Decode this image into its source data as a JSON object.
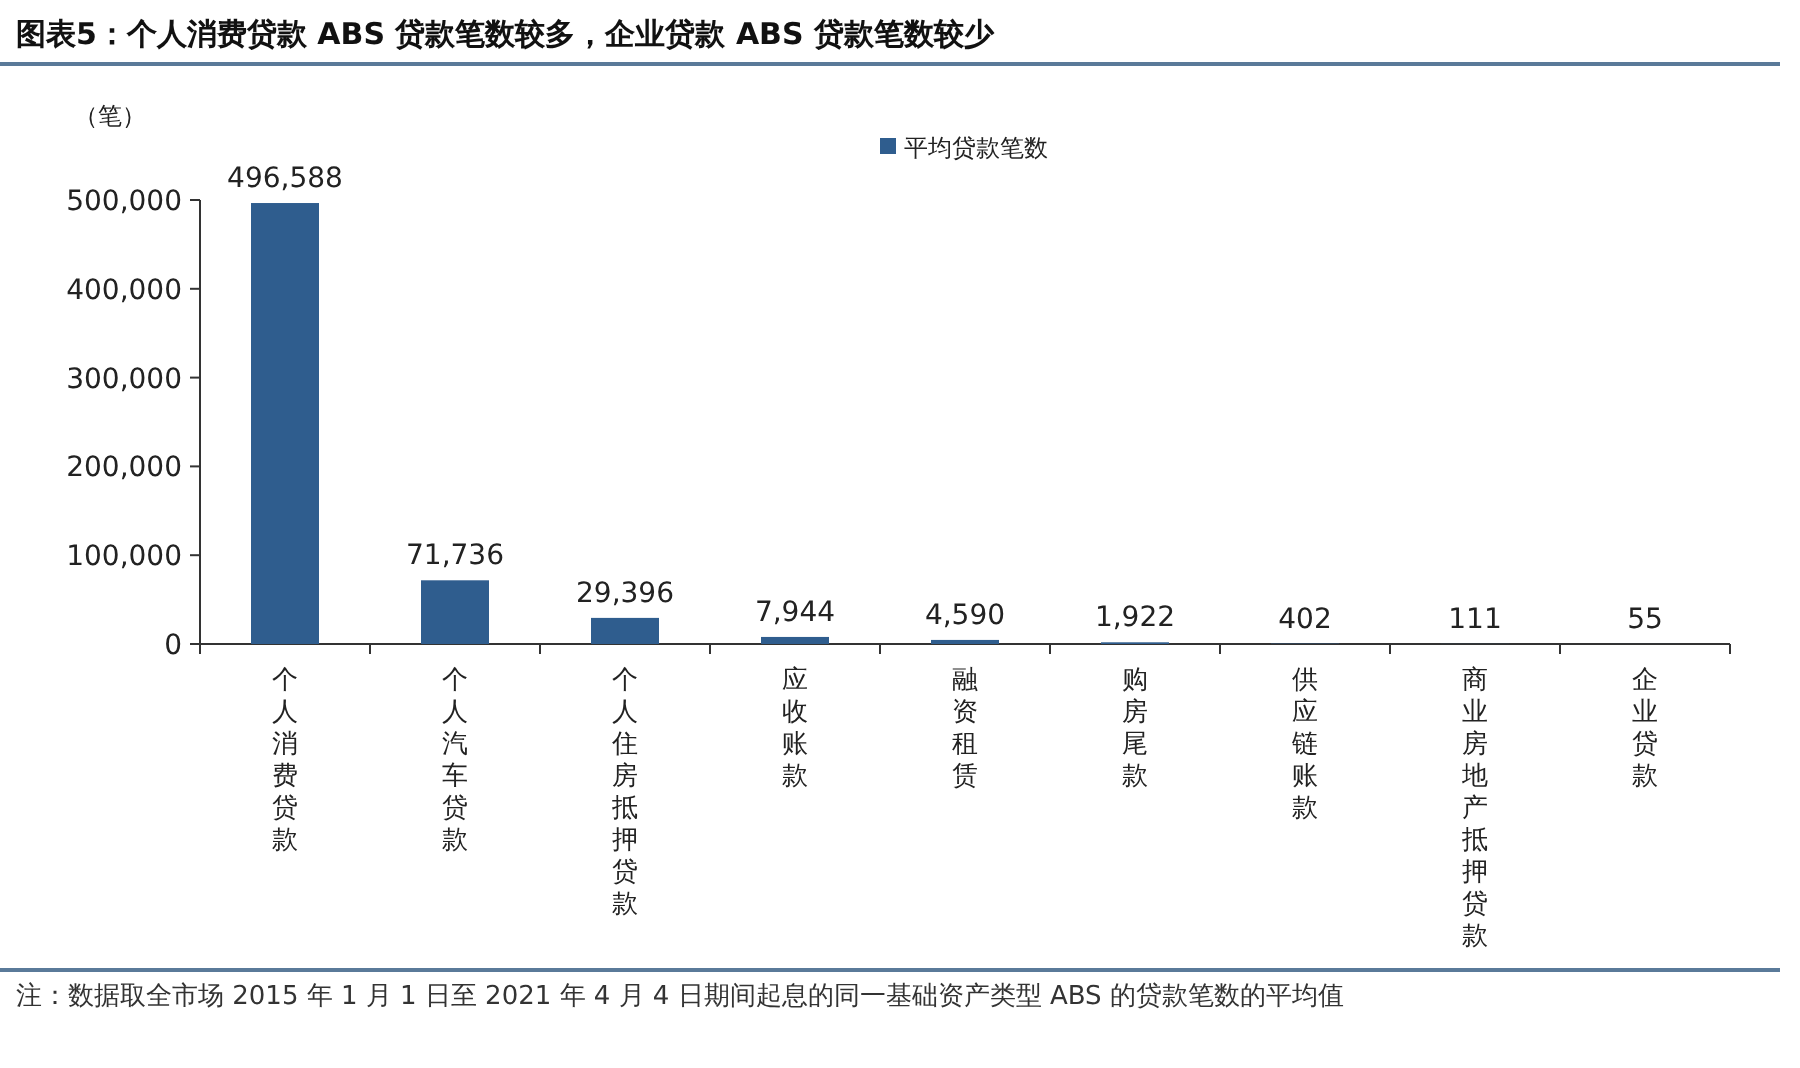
{
  "chart_data": {
    "type": "bar",
    "title": "图表5：个人消费贷款 ABS 贷款笔数较多，企业贷款 ABS 贷款笔数较少",
    "ylabel": "（笔）",
    "categories": [
      "个人消费贷款",
      "个人汽车贷款",
      "个人住房抵押贷款",
      "应收账款",
      "融资租赁",
      "购房尾款",
      "供应链账款",
      "商业房地产抵押贷款",
      "企业贷款"
    ],
    "series": [
      {
        "name": "平均贷款笔数",
        "color": "#2f5d8e",
        "values": [
          496588,
          71736,
          29396,
          7944,
          4590,
          1922,
          402,
          111,
          55
        ],
        "value_labels": [
          "496,588",
          "71,736",
          "29,396",
          "7,944",
          "4,590",
          "1,922",
          "402",
          "111",
          "55"
        ]
      }
    ],
    "ylim": [
      0,
      500000
    ],
    "yticks": [
      0,
      {
        "value": 100000,
        "label": "100,000"
      },
      {
        "value": 200000,
        "label": "200,000"
      },
      {
        "value": 300000,
        "label": "300,000"
      },
      {
        "value": 400000,
        "label": "400,000"
      },
      {
        "value": 500000,
        "label": "500,000"
      }
    ],
    "legend": "top",
    "annotations": [
      "注：数据取全市场 2015 年 1 月 1 日至 2021 年 4 月 4 日期间起息的同一基础资产类型 ABS 的贷款笔数的平均值"
    ]
  }
}
